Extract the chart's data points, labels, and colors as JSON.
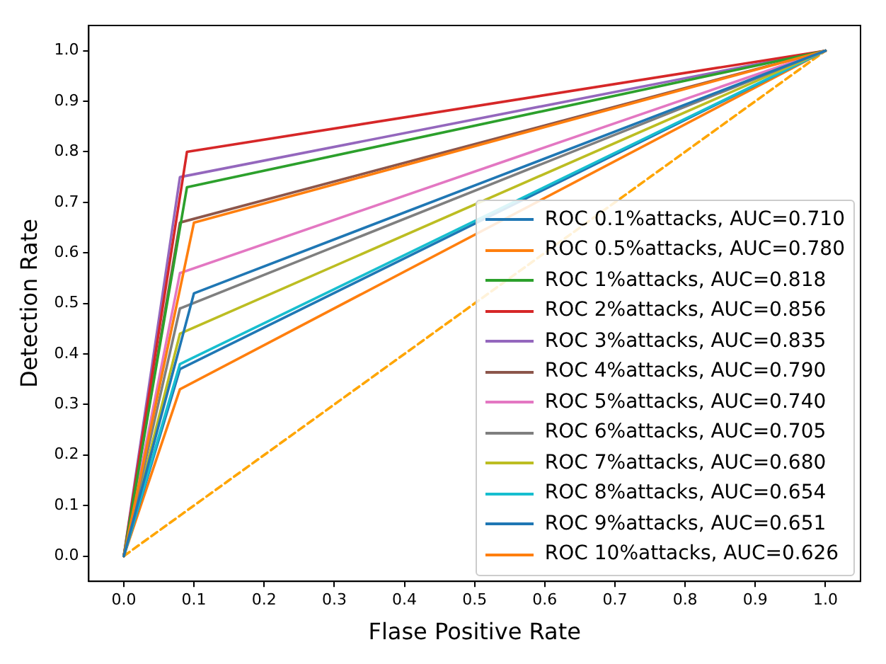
{
  "chart_data": {
    "type": "line",
    "xlabel": "Flase Positive Rate",
    "ylabel": "Detection Rate",
    "xlim": [
      -0.05,
      1.05
    ],
    "ylim": [
      -0.05,
      1.05
    ],
    "xticks": [
      {
        "value": 0,
        "label": "0.0"
      },
      0.1,
      0.2,
      0.3,
      0.4,
      0.5,
      0.6,
      0.7,
      0.8,
      0.9,
      {
        "value": 1,
        "label": "1.0"
      }
    ],
    "yticks": [
      {
        "value": 0,
        "label": "0.0"
      },
      0.1,
      0.2,
      0.3,
      0.4,
      0.5,
      0.6,
      0.7,
      0.8,
      0.9,
      {
        "value": 1,
        "label": "1.0"
      }
    ],
    "grid": false,
    "legend": "bottom right",
    "marker": "none",
    "series": [
      {
        "name": "ROC 0.1%attacks, AUC=0.710",
        "color": "#1f77b4",
        "x": [
          0,
          0.1,
          1
        ],
        "values": [
          0,
          0.52,
          1
        ]
      },
      {
        "name": "ROC 0.5%attacks, AUC=0.780",
        "color": "#ff7f0e",
        "x": [
          0,
          0.1,
          1
        ],
        "values": [
          0,
          0.66,
          1
        ]
      },
      {
        "name": "ROC 1%attacks, AUC=0.818",
        "color": "#2ca02c",
        "x": [
          0,
          0.09,
          1
        ],
        "values": [
          0,
          0.73,
          1
        ]
      },
      {
        "name": "ROC 2%attacks, AUC=0.856",
        "color": "#d62728",
        "x": [
          0,
          0.09,
          1
        ],
        "values": [
          0,
          0.8,
          1
        ]
      },
      {
        "name": "ROC 3%attacks, AUC=0.835",
        "color": "#9467bd",
        "x": [
          0,
          0.08,
          1
        ],
        "values": [
          0,
          0.75,
          1
        ]
      },
      {
        "name": "ROC 4%attacks, AUC=0.790",
        "color": "#8c564b",
        "x": [
          0,
          0.08,
          1
        ],
        "values": [
          0,
          0.66,
          1
        ]
      },
      {
        "name": "ROC 5%attacks, AUC=0.740",
        "color": "#e377c2",
        "x": [
          0,
          0.08,
          1
        ],
        "values": [
          0,
          0.56,
          1
        ]
      },
      {
        "name": "ROC 6%attacks, AUC=0.705",
        "color": "#7f7f7f",
        "x": [
          0,
          0.08,
          1
        ],
        "values": [
          0,
          0.49,
          1
        ]
      },
      {
        "name": "ROC 7%attacks, AUC=0.680",
        "color": "#bcbd22",
        "x": [
          0,
          0.08,
          1
        ],
        "values": [
          0,
          0.44,
          1
        ]
      },
      {
        "name": "ROC 8%attacks, AUC=0.654",
        "color": "#17becf",
        "x": [
          0,
          0.08,
          1
        ],
        "values": [
          0,
          0.38,
          1
        ]
      },
      {
        "name": "ROC 9%attacks, AUC=0.651",
        "color": "#1f77b4",
        "x": [
          0,
          0.08,
          1
        ],
        "values": [
          0,
          0.37,
          1
        ]
      },
      {
        "name": "ROC 10%attacks, AUC=0.626",
        "color": "#ff7f0e",
        "x": [
          0,
          0.08,
          1
        ],
        "values": [
          0,
          0.33,
          1
        ]
      },
      {
        "color": "#ffa500",
        "line_style": "dashed",
        "x": [
          0,
          1
        ],
        "values": [
          0,
          1
        ]
      }
    ]
  }
}
